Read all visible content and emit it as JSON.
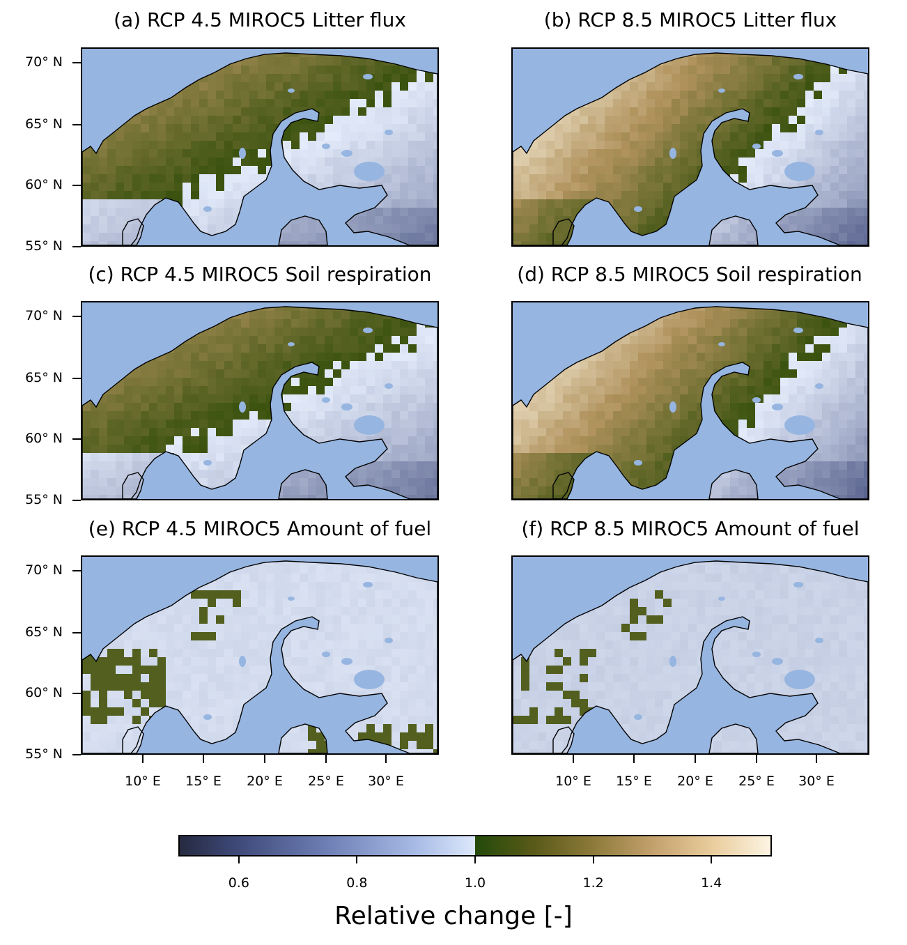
{
  "panels": [
    {
      "id": "a",
      "title": "(a) RCP 4.5 MIROC5 Litter flux",
      "level": 1.15
    },
    {
      "id": "b",
      "title": "(b) RCP 8.5 MIROC5 Litter flux",
      "level": 1.32
    },
    {
      "id": "c",
      "title": "(c) RCP 4.5 MIROC5 Soil respiration",
      "level": 1.15
    },
    {
      "id": "d",
      "title": "(d) RCP 8.5 MIROC5 Soil respiration",
      "level": 1.32
    },
    {
      "id": "e",
      "title": "(e) RCP 4.5 MIROC5 Amount of fuel",
      "level": 0.95
    },
    {
      "id": "f",
      "title": "(f) RCP 8.5 MIROC5 Amount of fuel",
      "level": 0.92
    }
  ],
  "lat_ticks": [
    "70° N",
    "65° N",
    "60° N",
    "55° N"
  ],
  "lon_ticks": [
    "10° E",
    "15° E",
    "20° E",
    "25° E",
    "30° E"
  ],
  "colorbar": {
    "label": "Relative change [-]",
    "range": [
      0.5,
      1.5
    ],
    "ticks": [
      "0.6",
      "0.8",
      "1.0",
      "1.2",
      "1.4"
    ]
  },
  "colors": {
    "ocean": "#96b5e0",
    "land_high": "#f1ddb8",
    "land_mid": "#8a7a3a",
    "land_low": "#dde8fb",
    "forest_green": "#2a4e0c"
  }
}
